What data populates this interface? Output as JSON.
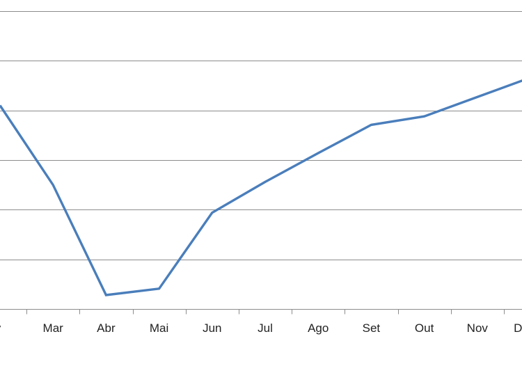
{
  "chart_data": {
    "type": "line",
    "title": "",
    "xlabel": "",
    "ylabel": "",
    "categories": [
      "Fev",
      "Mar",
      "Abr",
      "Mai",
      "Jun",
      "Jul",
      "Ago",
      "Set",
      "Out",
      "Nov",
      "Dez"
    ],
    "tick_labels": [
      "v",
      "Mar",
      "Abr",
      "Mai",
      "Jun",
      "Jul",
      "Ago",
      "Set",
      "Out",
      "Nov",
      "De"
    ],
    "series": [
      {
        "values": [
          4.1,
          2.5,
          0.28,
          0.41,
          1.94,
          2.56,
          3.14,
          3.71,
          3.88,
          4.27,
          4.66
        ],
        "color": "#4a7ebb"
      }
    ],
    "ylim": [
      0,
      6
    ],
    "y_gridlines": [
      1,
      2,
      3,
      4,
      5,
      6
    ],
    "grid": true,
    "legend": "none",
    "axis_color": "#8c8c8c"
  }
}
